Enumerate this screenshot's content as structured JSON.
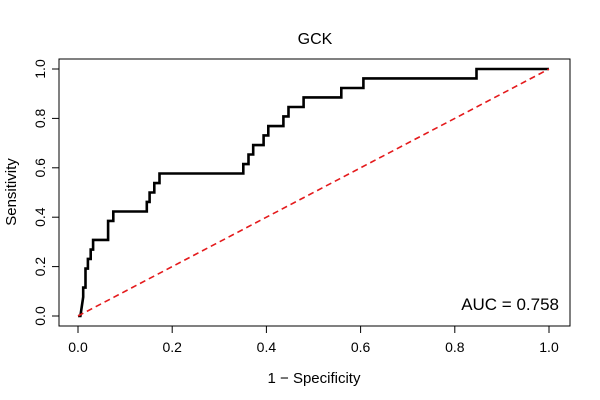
{
  "chart_data": {
    "type": "line",
    "title": "GCK",
    "xlabel": "1 − Specificity",
    "ylabel": "Sensitivity",
    "xlim": [
      0,
      1
    ],
    "ylim": [
      0,
      1
    ],
    "xticks": [
      0.0,
      0.2,
      0.4,
      0.6,
      0.8,
      1.0
    ],
    "xtick_labels": [
      "0.0",
      "0.2",
      "0.4",
      "0.6",
      "0.8",
      "1.0"
    ],
    "yticks": [
      0.0,
      0.2,
      0.4,
      0.6,
      0.8,
      1.0
    ],
    "ytick_labels": [
      "0.0",
      "0.2",
      "0.4",
      "0.6",
      "0.8",
      "1.0"
    ],
    "grid": false,
    "annotation": "AUC = 0.758",
    "colors": {
      "roc": "#000000",
      "reference": "#e41a1c"
    },
    "series": [
      {
        "style": "solid",
        "x": [
          0.0,
          0.005,
          0.011,
          0.011,
          0.016,
          0.016,
          0.021,
          0.021,
          0.027,
          0.027,
          0.032,
          0.032,
          0.037,
          0.037,
          0.043,
          0.043,
          0.064,
          0.064,
          0.075,
          0.075,
          0.146,
          0.146,
          0.152,
          0.152,
          0.162,
          0.162,
          0.173,
          0.173,
          0.351,
          0.351,
          0.362,
          0.362,
          0.372,
          0.372,
          0.394,
          0.394,
          0.404,
          0.404,
          0.436,
          0.436,
          0.447,
          0.447,
          0.479,
          0.479,
          0.559,
          0.559,
          0.606,
          0.606,
          0.846,
          0.846,
          1.0
        ],
        "y": [
          0.0,
          0.0,
          0.077,
          0.115,
          0.115,
          0.192,
          0.192,
          0.231,
          0.231,
          0.269,
          0.269,
          0.308,
          0.308,
          0.308,
          0.308,
          0.308,
          0.308,
          0.385,
          0.385,
          0.423,
          0.423,
          0.462,
          0.462,
          0.5,
          0.5,
          0.538,
          0.538,
          0.577,
          0.577,
          0.615,
          0.615,
          0.654,
          0.654,
          0.692,
          0.692,
          0.731,
          0.731,
          0.769,
          0.769,
          0.808,
          0.808,
          0.846,
          0.846,
          0.885,
          0.885,
          0.923,
          0.923,
          0.962,
          0.962,
          1.0,
          1.0
        ]
      },
      {
        "style": "dashed",
        "x": [
          0,
          1
        ],
        "y": [
          0,
          1
        ]
      }
    ]
  }
}
